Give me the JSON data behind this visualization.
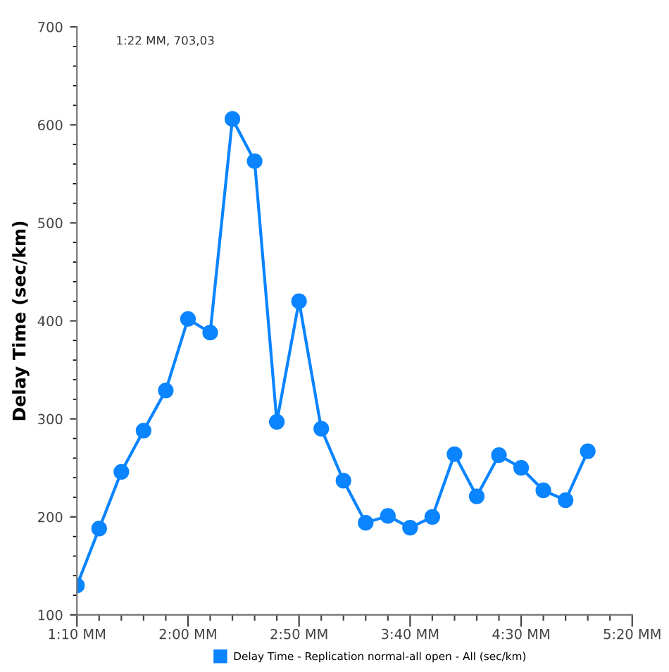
{
  "chart_data": {
    "type": "line",
    "ylabel": "Delay Time (sec/km)",
    "annotations": [
      "1:22 MM, 703,03"
    ],
    "categories": [
      "1:10 MM",
      null,
      null,
      null,
      null,
      "2:00 MM",
      null,
      null,
      null,
      null,
      "2:50 MM",
      null,
      null,
      null,
      null,
      "3:40 MM",
      null,
      null,
      null,
      null,
      "4:30 MM",
      null,
      null,
      null,
      null,
      "5:20 MM"
    ],
    "series": [
      {
        "name": "Delay Time - Replication normal-all open - All (sec/km)",
        "color": "#0a84ff",
        "values": [
          130,
          188,
          246,
          288,
          329,
          402,
          388,
          606,
          563,
          297,
          420,
          290,
          237,
          194,
          201,
          189,
          200,
          264,
          221,
          263,
          250,
          227,
          217,
          267,
          null,
          null
        ]
      }
    ],
    "ylim": [
      100,
      700
    ],
    "yticks": [
      100,
      200,
      300,
      400,
      500,
      600,
      700
    ],
    "grid": false,
    "legend": "bottom",
    "marker": "circle",
    "line_style": "solid"
  }
}
